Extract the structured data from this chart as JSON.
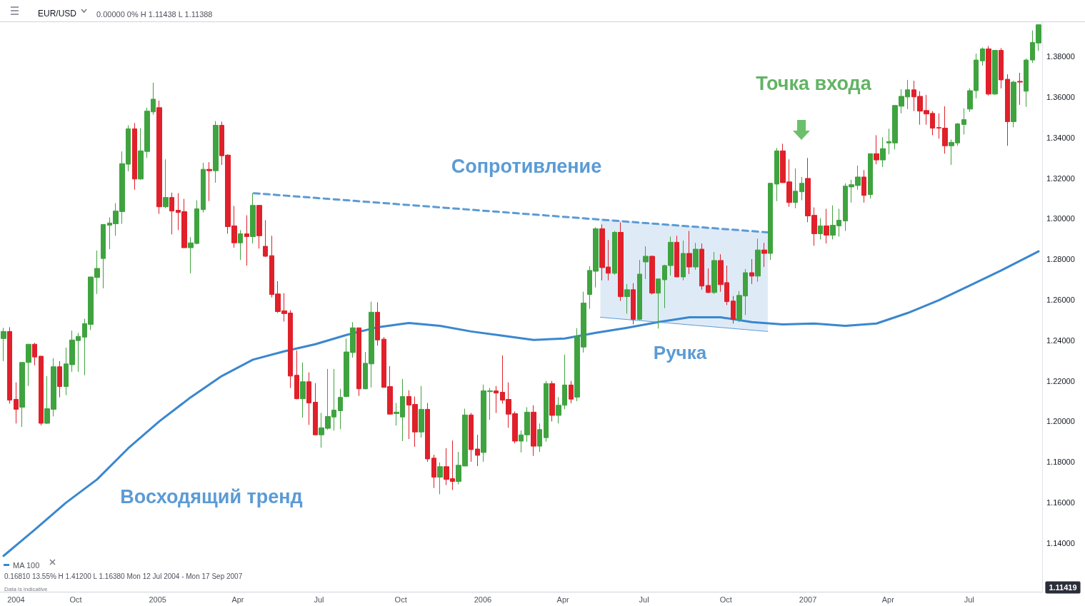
{
  "chart_data": {
    "type": "candlestick",
    "title": "EUR/USD",
    "subtitle": "0.00000 0% H 1.11438 L 1.11388",
    "x": [
      "2004-07-12",
      "2004-07-19",
      "2004-07-26",
      "2004-08-02",
      "2004-08-09",
      "2004-08-16",
      "2004-08-23",
      "2004-08-30",
      "2004-09-06",
      "2004-09-13",
      "2004-09-20",
      "2004-09-27",
      "2004-10-04",
      "2004-10-11",
      "2004-10-18",
      "2004-10-25",
      "2004-11-01",
      "2004-11-08",
      "2004-11-15",
      "2004-11-22",
      "2004-11-29",
      "2004-12-06",
      "2004-12-13",
      "2004-12-20",
      "2004-12-27",
      "2005-01-03",
      "2005-01-10",
      "2005-01-17",
      "2005-01-24",
      "2005-01-31",
      "2005-02-07",
      "2005-02-14",
      "2005-02-21",
      "2005-02-28",
      "2005-03-07",
      "2005-03-14",
      "2005-03-21",
      "2005-03-28",
      "2005-04-04",
      "2005-04-11",
      "2005-04-18",
      "2005-04-25",
      "2005-05-02",
      "2005-05-09",
      "2005-05-16",
      "2005-05-23",
      "2005-05-30",
      "2005-06-06",
      "2005-06-13",
      "2005-06-20",
      "2005-06-27",
      "2005-07-04",
      "2005-07-11",
      "2005-07-18",
      "2005-07-25",
      "2005-08-01",
      "2005-08-08",
      "2005-08-15",
      "2005-08-22",
      "2005-08-29",
      "2005-09-05",
      "2005-09-12",
      "2005-09-19",
      "2005-09-26",
      "2005-10-03",
      "2005-10-10",
      "2005-10-17",
      "2005-10-24",
      "2005-10-31",
      "2005-11-07",
      "2005-11-14",
      "2005-11-21",
      "2005-11-28",
      "2005-12-05",
      "2005-12-12",
      "2005-12-19",
      "2005-12-26",
      "2006-01-02",
      "2006-01-09",
      "2006-01-16",
      "2006-01-23",
      "2006-01-30",
      "2006-02-06",
      "2006-02-13",
      "2006-02-20",
      "2006-02-27",
      "2006-03-06",
      "2006-03-13",
      "2006-03-20",
      "2006-03-27",
      "2006-04-03",
      "2006-04-10",
      "2006-04-17",
      "2006-04-24",
      "2006-05-01",
      "2006-05-08",
      "2006-05-15",
      "2006-05-22",
      "2006-05-29",
      "2006-06-05",
      "2006-06-12",
      "2006-06-19",
      "2006-06-26",
      "2006-07-03",
      "2006-07-10",
      "2006-07-17",
      "2006-07-24",
      "2006-07-31",
      "2006-08-07",
      "2006-08-14",
      "2006-08-21",
      "2006-08-28",
      "2006-09-04",
      "2006-09-11",
      "2006-09-18",
      "2006-09-25",
      "2006-10-02",
      "2006-10-09",
      "2006-10-16",
      "2006-10-23",
      "2006-10-30",
      "2006-11-06",
      "2006-11-13",
      "2006-11-20",
      "2006-11-27",
      "2006-12-04",
      "2006-12-11",
      "2006-12-18",
      "2006-12-25",
      "2007-01-01",
      "2007-01-08",
      "2007-01-15",
      "2007-01-22",
      "2007-01-29",
      "2007-02-05",
      "2007-02-12",
      "2007-02-19",
      "2007-02-26",
      "2007-03-05",
      "2007-03-12",
      "2007-03-19",
      "2007-03-26",
      "2007-04-02",
      "2007-04-09",
      "2007-04-16",
      "2007-04-23",
      "2007-04-30",
      "2007-05-07",
      "2007-05-14",
      "2007-05-21",
      "2007-05-28",
      "2007-06-04",
      "2007-06-11",
      "2007-06-18",
      "2007-06-25",
      "2007-07-02",
      "2007-07-09",
      "2007-07-16",
      "2007-07-23",
      "2007-07-30",
      "2007-08-06",
      "2007-08-13",
      "2007-08-20",
      "2007-08-27",
      "2007-09-03",
      "2007-09-10",
      "2007-09-17"
    ],
    "ohlc": [
      [
        1.2409,
        1.2462,
        1.2298,
        1.2444
      ],
      [
        1.2444,
        1.2465,
        1.2088,
        1.2105
      ],
      [
        1.2109,
        1.2193,
        1.199,
        1.206
      ],
      [
        1.207,
        1.2291,
        1.1973,
        1.2291
      ],
      [
        1.2291,
        1.2381,
        1.2175,
        1.2381
      ],
      [
        1.2381,
        1.2388,
        1.2277,
        1.2318
      ],
      [
        1.2322,
        1.2322,
        1.1981,
        1.1991
      ],
      [
        1.1991,
        1.2224,
        1.1987,
        1.2063
      ],
      [
        1.206,
        1.2312,
        1.2025,
        1.227
      ],
      [
        1.227,
        1.2298,
        1.2119,
        1.2172
      ],
      [
        1.2172,
        1.2364,
        1.213,
        1.2284
      ],
      [
        1.228,
        1.2448,
        1.2245,
        1.2402
      ],
      [
        1.2399,
        1.2437,
        1.2245,
        1.242
      ],
      [
        1.2416,
        1.2507,
        1.2228,
        1.2483
      ],
      [
        1.2479,
        1.2713,
        1.2451,
        1.2713
      ],
      [
        1.271,
        1.2843,
        1.2629,
        1.2755
      ],
      [
        1.2804,
        1.2972,
        1.2657,
        1.2972
      ],
      [
        1.2968,
        1.3007,
        1.285,
        1.2979
      ],
      [
        1.2975,
        1.3077,
        1.2916,
        1.3038
      ],
      [
        1.3035,
        1.3332,
        1.2975,
        1.3272
      ],
      [
        1.3269,
        1.3461,
        1.3234,
        1.3444
      ],
      [
        1.3444,
        1.3472,
        1.3143,
        1.3196
      ],
      [
        1.3196,
        1.3447,
        1.3192,
        1.3335
      ],
      [
        1.3332,
        1.3548,
        1.33,
        1.3531
      ],
      [
        1.3527,
        1.3671,
        1.3513,
        1.359
      ],
      [
        1.3548,
        1.3583,
        1.3024,
        1.3059
      ],
      [
        1.3059,
        1.3293,
        1.3052,
        1.3105
      ],
      [
        1.3105,
        1.3129,
        1.2923,
        1.3038
      ],
      [
        1.3042,
        1.3126,
        1.2944,
        1.3031
      ],
      [
        1.3035,
        1.3098,
        1.2857,
        1.2857
      ],
      [
        1.2857,
        1.2909,
        1.2731,
        1.2881
      ],
      [
        1.2878,
        1.3091,
        1.2874,
        1.3049
      ],
      [
        1.3045,
        1.3276,
        1.3031,
        1.3244
      ],
      [
        1.3244,
        1.3279,
        1.3087,
        1.3237
      ],
      [
        1.3237,
        1.3482,
        1.3178,
        1.3461
      ],
      [
        1.3461,
        1.3479,
        1.3266,
        1.3311
      ],
      [
        1.3314,
        1.3318,
        1.2926,
        1.2961
      ],
      [
        1.2965,
        1.3063,
        1.2857,
        1.2881
      ],
      [
        1.2881,
        1.2944,
        1.2797,
        1.2926
      ],
      [
        1.2926,
        1.3017,
        1.2769,
        1.2912
      ],
      [
        1.2912,
        1.3126,
        1.2878,
        1.3066
      ],
      [
        1.3066,
        1.3066,
        1.2853,
        1.2916
      ],
      [
        1.2864,
        1.2993,
        1.2811,
        1.2815
      ],
      [
        1.2818,
        1.2916,
        1.2612,
        1.2626
      ],
      [
        1.2629,
        1.2692,
        1.2535,
        1.2542
      ],
      [
        1.2546,
        1.2633,
        1.2493,
        1.2532
      ],
      [
        1.2535,
        1.2549,
        1.2165,
        1.2224
      ],
      [
        1.2228,
        1.235,
        1.2109,
        1.2112
      ],
      [
        1.2112,
        1.2291,
        1.2018,
        1.2196
      ],
      [
        1.2196,
        1.2242,
        1.1983,
        1.2091
      ],
      [
        1.2095,
        1.2189,
        1.1934,
        1.1934
      ],
      [
        1.1934,
        1.2042,
        1.1871,
        1.1969
      ],
      [
        1.1966,
        1.2259,
        1.1959,
        1.2025
      ],
      [
        1.2022,
        1.2259,
        1.1955,
        1.2056
      ],
      [
        1.2053,
        1.2161,
        1.1962,
        1.2119
      ],
      [
        1.2123,
        1.2409,
        1.2119,
        1.2343
      ],
      [
        1.234,
        1.249,
        1.2315,
        1.2462
      ],
      [
        1.2462,
        1.2462,
        1.2126,
        1.2161
      ],
      [
        1.2161,
        1.2343,
        1.2158,
        1.2287
      ],
      [
        1.2284,
        1.2591,
        1.2168,
        1.2539
      ],
      [
        1.2539,
        1.2588,
        1.2374,
        1.2402
      ],
      [
        1.2406,
        1.2416,
        1.2168,
        1.2168
      ],
      [
        1.2172,
        1.2273,
        1.2036,
        1.2036
      ],
      [
        1.2039,
        1.2091,
        1.198,
        1.2046
      ],
      [
        1.2022,
        1.221,
        1.1903,
        1.2123
      ],
      [
        1.2123,
        1.2154,
        1.1913,
        1.2081
      ],
      [
        1.2084,
        1.2123,
        1.1875,
        1.1948
      ],
      [
        1.1948,
        1.2175,
        1.192,
        1.206
      ],
      [
        1.206,
        1.2091,
        1.1801,
        1.1815
      ],
      [
        1.1819,
        1.1836,
        1.1672,
        1.1725
      ],
      [
        1.1725,
        1.1798,
        1.1641,
        1.1777
      ],
      [
        1.1777,
        1.1868,
        1.1686,
        1.1714
      ],
      [
        1.1718,
        1.1906,
        1.1662,
        1.1704
      ],
      [
        1.1704,
        1.185,
        1.169,
        1.1784
      ],
      [
        1.178,
        1.2063,
        1.178,
        1.2032
      ],
      [
        1.2032,
        1.2042,
        1.1801,
        1.1861
      ],
      [
        1.1864,
        1.1934,
        1.178,
        1.1833
      ],
      [
        1.1847,
        1.2182,
        1.1801,
        1.2151
      ],
      [
        1.2147,
        1.2165,
        1.2008,
        1.2151
      ],
      [
        1.2151,
        1.2175,
        1.2042,
        1.214
      ],
      [
        1.2144,
        1.2326,
        1.2088,
        1.2105
      ],
      [
        1.2109,
        1.2193,
        1.1969,
        1.2036
      ],
      [
        1.2039,
        1.2049,
        1.1892,
        1.1903
      ],
      [
        1.1903,
        1.1955,
        1.1847,
        1.1934
      ],
      [
        1.1934,
        1.207,
        1.19,
        1.2046
      ],
      [
        1.2046,
        1.208,
        1.183,
        1.1878
      ],
      [
        1.1878,
        1.199,
        1.185,
        1.196
      ],
      [
        1.192,
        1.22,
        1.19,
        1.2187
      ],
      [
        1.2187,
        1.22,
        1.2,
        1.203
      ],
      [
        1.203,
        1.212,
        1.199,
        1.208
      ],
      [
        1.208,
        1.233,
        1.206,
        1.218
      ],
      [
        1.218,
        1.22,
        1.209,
        1.211
      ],
      [
        1.212,
        1.246,
        1.21,
        1.242
      ],
      [
        1.2367,
        1.264,
        1.234,
        1.2584
      ],
      [
        1.2626,
        1.2766,
        1.2556,
        1.2745
      ],
      [
        1.2741,
        1.2958,
        1.2661,
        1.2951
      ],
      [
        1.2951,
        1.2972,
        1.2696,
        1.2759
      ],
      [
        1.2762,
        1.2895,
        1.2696,
        1.2731
      ],
      [
        1.2731,
        1.294,
        1.2724,
        1.2933
      ],
      [
        1.2933,
        1.2982,
        1.2595,
        1.2616
      ],
      [
        1.2616,
        1.2678,
        1.2532,
        1.265
      ],
      [
        1.265,
        1.2682,
        1.2479,
        1.2504
      ],
      [
        1.2504,
        1.2797,
        1.25,
        1.2727
      ],
      [
        1.2787,
        1.2864,
        1.2703,
        1.2815
      ],
      [
        1.2815,
        1.2818,
        1.2626,
        1.2633
      ],
      [
        1.2633,
        1.2703,
        1.2458,
        1.2703
      ],
      [
        1.2699,
        1.2773,
        1.2559,
        1.2769
      ],
      [
        1.2769,
        1.2912,
        1.272,
        1.2884
      ],
      [
        1.2884,
        1.2916,
        1.2713,
        1.2713
      ],
      [
        1.2713,
        1.2892,
        1.2696,
        1.2829
      ],
      [
        1.2829,
        1.294,
        1.2727,
        1.2762
      ],
      [
        1.2762,
        1.2881,
        1.2748,
        1.285
      ],
      [
        1.285,
        1.2878,
        1.265,
        1.2668
      ],
      [
        1.2671,
        1.2755,
        1.2633,
        1.2636
      ],
      [
        1.2636,
        1.2836,
        1.2629,
        1.2794
      ],
      [
        1.2794,
        1.2825,
        1.264,
        1.2675
      ],
      [
        1.2685,
        1.2769,
        1.2574,
        1.2591
      ],
      [
        1.2594,
        1.2619,
        1.2483,
        1.2504
      ],
      [
        1.2504,
        1.2643,
        1.249,
        1.2622
      ],
      [
        1.2619,
        1.2752,
        1.2525,
        1.2734
      ],
      [
        1.2734,
        1.2801,
        1.2678,
        1.2717
      ],
      [
        1.2717,
        1.2902,
        1.2689,
        1.2846
      ],
      [
        1.2846,
        1.2881,
        1.2762,
        1.2829
      ],
      [
        1.2829,
        1.3175,
        1.2797,
        1.3175
      ],
      [
        1.3171,
        1.3349,
        1.3087,
        1.3335
      ],
      [
        1.3335,
        1.337,
        1.3178,
        1.3178
      ],
      [
        1.3182,
        1.3293,
        1.3059,
        1.308
      ],
      [
        1.308,
        1.3248,
        1.3052,
        1.3136
      ],
      [
        1.3133,
        1.3206,
        1.3091,
        1.3175
      ],
      [
        1.3199,
        1.33,
        1.2983,
        1.3014
      ],
      [
        1.3017,
        1.3056,
        1.2867,
        1.2926
      ],
      [
        1.2926,
        1.3003,
        1.2898,
        1.2965
      ],
      [
        1.2965,
        1.3049,
        1.2878,
        1.2919
      ],
      [
        1.2919,
        1.3066,
        1.2898,
        1.2968
      ],
      [
        1.2965,
        1.3049,
        1.2912,
        1.2993
      ],
      [
        1.2989,
        1.3175,
        1.294,
        1.3161
      ],
      [
        1.3157,
        1.3192,
        1.308,
        1.3168
      ],
      [
        1.3164,
        1.3262,
        1.3143,
        1.3206
      ],
      [
        1.3206,
        1.324,
        1.308,
        1.3115
      ],
      [
        1.3119,
        1.3321,
        1.31,
        1.3321
      ],
      [
        1.3321,
        1.3412,
        1.3269,
        1.329
      ],
      [
        1.329,
        1.3402,
        1.3255,
        1.3346
      ],
      [
        1.3374,
        1.3444,
        1.3318,
        1.3381
      ],
      [
        1.3374,
        1.3559,
        1.3342,
        1.3559
      ],
      [
        1.3555,
        1.3639,
        1.352,
        1.3604
      ],
      [
        1.3601,
        1.3685,
        1.3541,
        1.3636
      ],
      [
        1.3636,
        1.3681,
        1.3531,
        1.3601
      ],
      [
        1.3604,
        1.3629,
        1.3464,
        1.3531
      ],
      [
        1.3534,
        1.3611,
        1.3464,
        1.3517
      ],
      [
        1.352,
        1.3531,
        1.3412,
        1.3447
      ],
      [
        1.345,
        1.352,
        1.3395,
        1.3447
      ],
      [
        1.3447,
        1.3555,
        1.3321,
        1.336
      ],
      [
        1.336,
        1.3391,
        1.3266,
        1.3377
      ],
      [
        1.3374,
        1.3472,
        1.336,
        1.3468
      ],
      [
        1.3465,
        1.3545,
        1.3416,
        1.3489
      ],
      [
        1.3541,
        1.3643,
        1.3527,
        1.3632
      ],
      [
        1.3632,
        1.3814,
        1.3594,
        1.3783
      ],
      [
        1.3779,
        1.3845,
        1.3755,
        1.3838
      ],
      [
        1.3838,
        1.3852,
        1.3608,
        1.3615
      ],
      [
        1.3615,
        1.3831,
        1.3611,
        1.3831
      ],
      [
        1.3831,
        1.3842,
        1.3643,
        1.3685
      ],
      [
        1.3688,
        1.3713,
        1.336,
        1.3479
      ],
      [
        1.3479,
        1.3681,
        1.3451,
        1.3674
      ],
      [
        1.3678,
        1.372,
        1.3562,
        1.3674
      ],
      [
        1.3629,
        1.379,
        1.3552,
        1.3783
      ],
      [
        1.3783,
        1.3929,
        1.3769,
        1.387
      ],
      [
        1.3867,
        1.396,
        1.3828,
        1.3957
      ]
    ],
    "colors": [
      "#3fa33f",
      "#e0202a",
      "#e0202a",
      "#3fa33f",
      "#3fa33f",
      "#e0202a",
      "#e0202a",
      "#3fa33f",
      "#3fa33f",
      "#e0202a",
      "#3fa33f",
      "#3fa33f",
      "#3fa33f",
      "#3fa33f",
      "#3fa33f",
      "#3fa33f",
      "#3fa33f",
      "#3fa33f",
      "#3fa33f",
      "#3fa33f",
      "#3fa33f",
      "#e0202a",
      "#3fa33f",
      "#3fa33f",
      "#3fa33f",
      "#e0202a",
      "#3fa33f",
      "#e0202a",
      "#e0202a",
      "#e0202a",
      "#3fa33f",
      "#3fa33f",
      "#3fa33f",
      "#e0202a",
      "#3fa33f",
      "#e0202a",
      "#e0202a",
      "#e0202a",
      "#3fa33f",
      "#e0202a",
      "#3fa33f",
      "#e0202a",
      "#e0202a",
      "#e0202a",
      "#e0202a",
      "#e0202a",
      "#e0202a",
      "#e0202a",
      "#3fa33f",
      "#e0202a",
      "#e0202a",
      "#3fa33f",
      "#3fa33f",
      "#3fa33f",
      "#3fa33f",
      "#3fa33f",
      "#3fa33f",
      "#e0202a",
      "#3fa33f",
      "#3fa33f",
      "#e0202a",
      "#e0202a",
      "#e0202a",
      "#3fa33f",
      "#3fa33f",
      "#e0202a",
      "#e0202a",
      "#3fa33f",
      "#e0202a",
      "#e0202a",
      "#3fa33f",
      "#e0202a",
      "#e0202a",
      "#3fa33f",
      "#3fa33f",
      "#e0202a",
      "#e0202a",
      "#3fa33f",
      "#3fa33f",
      "#e0202a",
      "#e0202a",
      "#e0202a",
      "#e0202a",
      "#3fa33f",
      "#3fa33f",
      "#e0202a",
      "#3fa33f",
      "#3fa33f",
      "#e0202a",
      "#3fa33f",
      "#3fa33f",
      "#e0202a",
      "#3fa33f",
      "#3fa33f",
      "#3fa33f",
      "#3fa33f",
      "#e0202a",
      "#e0202a",
      "#3fa33f",
      "#e0202a",
      "#3fa33f",
      "#e0202a",
      "#3fa33f",
      "#3fa33f",
      "#e0202a",
      "#3fa33f",
      "#3fa33f",
      "#3fa33f",
      "#e0202a",
      "#3fa33f",
      "#e0202a",
      "#3fa33f",
      "#e0202a",
      "#e0202a",
      "#3fa33f",
      "#e0202a",
      "#e0202a",
      "#e0202a",
      "#3fa33f",
      "#3fa33f",
      "#e0202a",
      "#3fa33f",
      "#e0202a",
      "#3fa33f",
      "#3fa33f",
      "#e0202a",
      "#e0202a",
      "#3fa33f",
      "#3fa33f",
      "#e0202a",
      "#e0202a",
      "#3fa33f",
      "#e0202a",
      "#3fa33f",
      "#3fa33f",
      "#3fa33f",
      "#3fa33f",
      "#3fa33f",
      "#e0202a",
      "#3fa33f",
      "#e0202a",
      "#3fa33f",
      "#3fa33f",
      "#3fa33f",
      "#3fa33f",
      "#3fa33f",
      "#e0202a",
      "#e0202a",
      "#e0202a",
      "#e0202a",
      "#e0202a",
      "#e0202a",
      "#3fa33f",
      "#3fa33f",
      "#3fa33f",
      "#3fa33f",
      "#3fa33f",
      "#3fa33f",
      "#e0202a",
      "#3fa33f",
      "#e0202a",
      "#e0202a",
      "#3fa33f",
      "#e0202a",
      "#3fa33f",
      "#3fa33f",
      "#3fa33f"
    ],
    "series": [
      {
        "type": "line",
        "name": "MA 100",
        "color": "#3a87cf",
        "x": [
          "2004-07-12",
          "2004-08-16",
          "2004-09-20",
          "2004-10-25",
          "2004-11-29",
          "2005-01-03",
          "2005-02-07",
          "2005-03-14",
          "2005-04-18",
          "2005-05-23",
          "2005-06-27",
          "2005-08-01",
          "2005-09-05",
          "2005-10-10",
          "2005-11-14",
          "2005-12-19",
          "2006-01-23",
          "2006-02-27",
          "2006-04-03",
          "2006-05-08",
          "2006-06-12",
          "2006-07-17",
          "2006-08-21",
          "2006-09-25",
          "2006-10-30",
          "2006-12-04",
          "2007-01-08",
          "2007-02-12",
          "2007-03-19",
          "2007-04-23",
          "2007-05-28",
          "2007-07-02",
          "2007-08-06",
          "2007-09-17"
        ],
        "values": [
          1.1337,
          1.1466,
          1.1599,
          1.1714,
          1.1868,
          1.2001,
          1.2119,
          1.2224,
          1.2305,
          1.2346,
          1.2381,
          1.2427,
          1.2465,
          1.2486,
          1.2472,
          1.2444,
          1.2423,
          1.2402,
          1.2409,
          1.2437,
          1.2462,
          1.249,
          1.2514,
          1.2514,
          1.249,
          1.2479,
          1.2483,
          1.2472,
          1.2483,
          1.2535,
          1.2598,
          1.2671,
          1.2745,
          1.2839
        ]
      },
      {
        "type": "line",
        "color": "#5b9bd5",
        "line_style": "dashed",
        "x": [
          "2005-04-19",
          "2006-11-17"
        ],
        "values": [
          1.3126,
          1.2933
        ]
      },
      {
        "type": "line",
        "color": "#5b9bd5",
        "x": [
          "2006-05-13",
          "2006-11-17"
        ],
        "values": [
          1.2514,
          1.2444
        ],
        "lower": [
          1.2514,
          1.2444
        ],
        "upper": [
          1.2999,
          1.2933
        ]
      }
    ],
    "xlim": [
      "2004-07-08",
      "2007-09-21"
    ],
    "xticks": [
      {
        "value": "2004-07-26",
        "label": "2004"
      },
      {
        "value": "2004-10-01",
        "label": "Oct"
      },
      {
        "value": "2005-01-01",
        "label": "2005"
      },
      {
        "value": "2005-04-01",
        "label": "Apr"
      },
      {
        "value": "2005-07-01",
        "label": "Jul"
      },
      {
        "value": "2005-10-01",
        "label": "Oct"
      },
      {
        "value": "2006-01-01",
        "label": "2006"
      },
      {
        "value": "2006-04-01",
        "label": "Apr"
      },
      {
        "value": "2006-07-01",
        "label": "Jul"
      },
      {
        "value": "2006-10-01",
        "label": "Oct"
      },
      {
        "value": "2007-01-01",
        "label": "2007"
      },
      {
        "value": "2007-04-01",
        "label": "Apr"
      },
      {
        "value": "2007-07-01",
        "label": "Jul"
      }
    ],
    "ylim": [
      1.116,
      1.397
    ],
    "yticks": [
      {
        "value": 1.14,
        "label": "1.14000"
      },
      {
        "value": 1.16,
        "label": "1.16000"
      },
      {
        "value": 1.18,
        "label": "1.18000"
      },
      {
        "value": 1.2,
        "label": "1.20000"
      },
      {
        "value": 1.22,
        "label": "1.22000"
      },
      {
        "value": 1.24,
        "label": "1.24000"
      },
      {
        "value": 1.26,
        "label": "1.26000"
      },
      {
        "value": 1.28,
        "label": "1.28000"
      },
      {
        "value": 1.3,
        "label": "1.30000"
      },
      {
        "value": 1.32,
        "label": "1.32000"
      },
      {
        "value": 1.34,
        "label": "1.34000"
      },
      {
        "value": 1.36,
        "label": "1.36000"
      },
      {
        "value": 1.38,
        "label": "1.38000"
      }
    ],
    "annotations": [
      "Сопротивление",
      "Точка входа",
      "Ручка",
      "Восходящий тренд",
      "0.16810 13.55% H 1.41200 L 1.16380 Mon 12 Jul 2004 - Mon 17 Sep 2007",
      "Data is indicative",
      "1.11419"
    ],
    "legend": "bottom left",
    "marker": "none"
  }
}
